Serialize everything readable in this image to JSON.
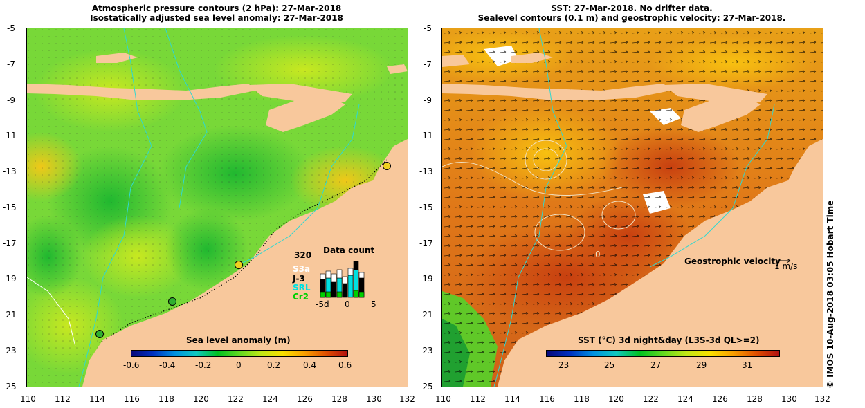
{
  "left_panel": {
    "title_line1": "Atmospheric pressure contours (2 hPa): 27-Mar-2018",
    "title_line2": "Isostatically adjusted sea level anomaly: 27-Mar-2018",
    "colorbar": {
      "title": "Sea level anomaly (m)",
      "ticks": [
        "-0.6",
        "-0.4",
        "-0.2",
        "0",
        "0.2",
        "0.4",
        "0.6"
      ],
      "colors": [
        "#08087a",
        "#0030c0",
        "#0090e0",
        "#10c8c0",
        "#00c020",
        "#60d820",
        "#c0e818",
        "#f8e000",
        "#f8a000",
        "#e05000",
        "#b01010"
      ]
    },
    "data_count": {
      "title": "Data count",
      "max_label": "320",
      "x_ticks": [
        "-5d",
        "0",
        "5"
      ],
      "series": [
        {
          "name": "S3a",
          "color": "#ffffff"
        },
        {
          "name": "J-3",
          "color": "#000000"
        },
        {
          "name": "SRL",
          "color": "#00e0e0"
        },
        {
          "name": "Cr2",
          "color": "#00d000"
        }
      ]
    }
  },
  "right_panel": {
    "title_line1": "SST: 27-Mar-2018. No drifter data.",
    "title_line2": "Sealevel contours (0.1 m) and geostrophic velocity: 27-Mar-2018.",
    "velocity_label": "Geostrophic velocity",
    "velocity_scale": "1 m/s",
    "contour_label": "0",
    "colorbar": {
      "title": "SST (°C) 3d night&day (L3S-3d QL>=2)",
      "ticks": [
        "23",
        "25",
        "27",
        "29",
        "31"
      ],
      "colors": [
        "#08087a",
        "#0030c0",
        "#0090e0",
        "#10c8c0",
        "#00c020",
        "#60d820",
        "#c0e818",
        "#f8e000",
        "#f8a000",
        "#e05000",
        "#b01010"
      ]
    }
  },
  "axes": {
    "lat_ticks": [
      "-5",
      "-7",
      "-9",
      "-11",
      "-13",
      "-15",
      "-17",
      "-19",
      "-21",
      "-23",
      "-25"
    ],
    "lon_ticks": [
      "110",
      "112",
      "114",
      "116",
      "118",
      "120",
      "122",
      "124",
      "126",
      "128",
      "130",
      "132"
    ]
  },
  "credit": "© IMOS 10-Aug-2018 03:05 Hobart Time",
  "colors": {
    "land": "#f8c89c",
    "ocean_green": "#70d830",
    "ocean_orange": "#e88a18",
    "contour_cyan": "#30d8d0"
  }
}
